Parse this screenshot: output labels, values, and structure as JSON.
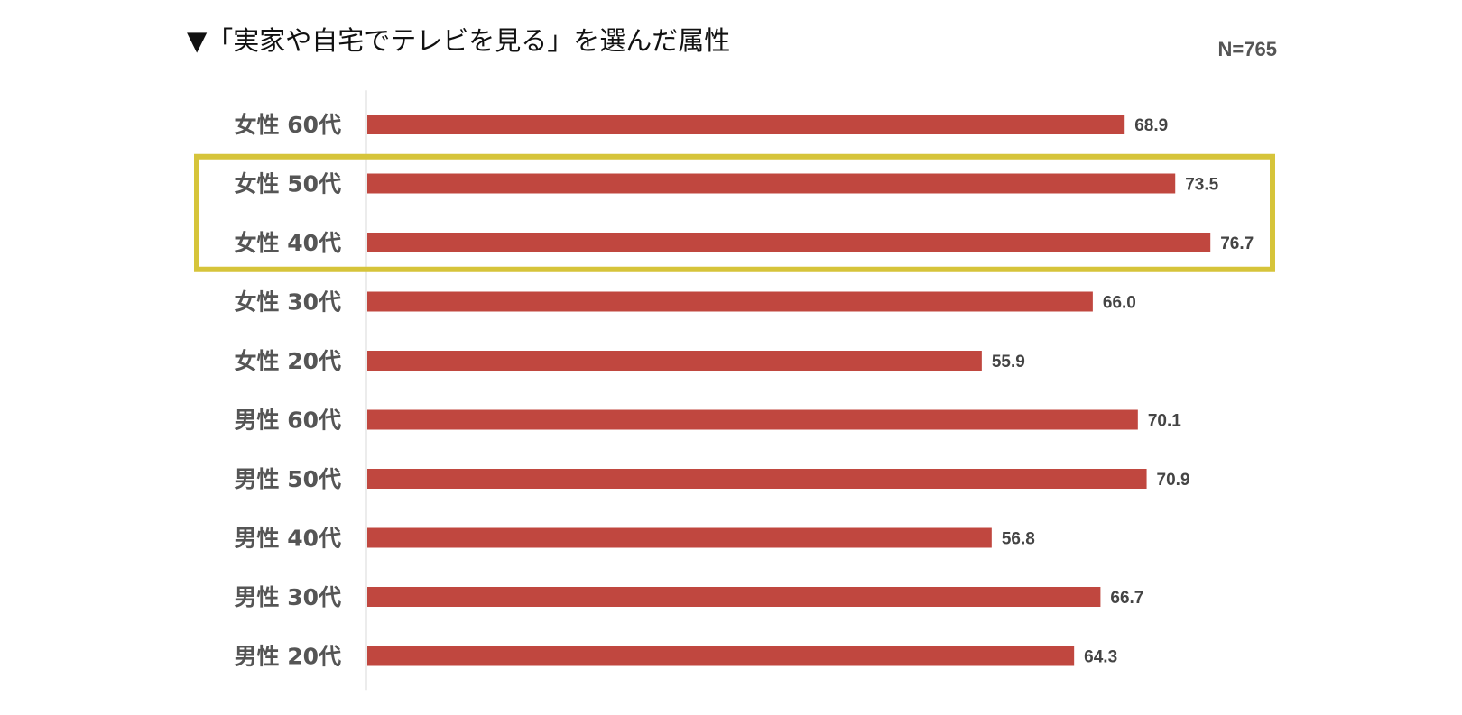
{
  "title": "▼「実家や自宅でテレビを見る」を選んだ属性",
  "sample_size": "N=765",
  "colors": {
    "bar": "#c0473f",
    "highlight": "#d6c43a",
    "axis": "#d9d9d9"
  },
  "chart_data": {
    "type": "bar",
    "orientation": "horizontal",
    "categories": [
      "女性 60代",
      "女性 50代",
      "女性 40代",
      "女性 30代",
      "女性 20代",
      "男性 60代",
      "男性 50代",
      "男性 40代",
      "男性 30代",
      "男性 20代"
    ],
    "values": [
      68.9,
      73.5,
      76.7,
      66.0,
      55.9,
      70.1,
      70.9,
      56.8,
      66.7,
      64.3
    ],
    "value_labels": [
      "68.9",
      "73.5",
      "76.7",
      "66.0",
      "55.9",
      "70.1",
      "70.9",
      "56.8",
      "66.7",
      "64.3"
    ],
    "xlim": [
      0,
      100
    ],
    "grid": false,
    "highlighted_categories": [
      "女性 50代",
      "女性 40代"
    ]
  }
}
